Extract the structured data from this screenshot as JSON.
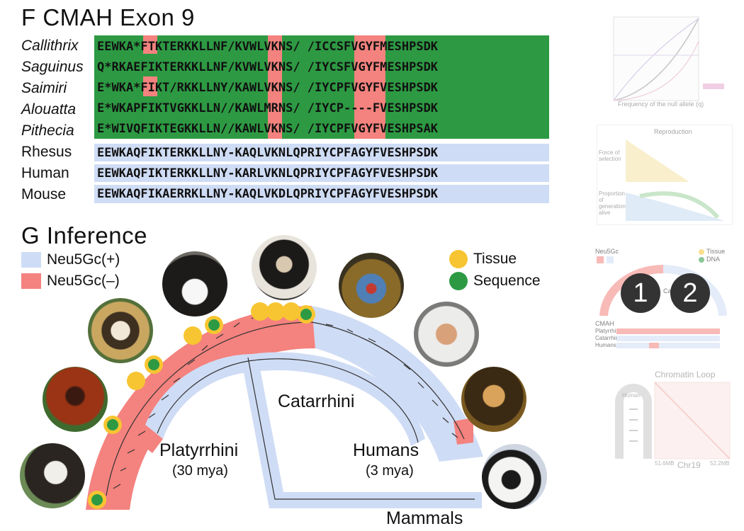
{
  "panelF": {
    "title": "F CMAH Exon 9",
    "species": [
      {
        "name": "Callithrix",
        "italic": true
      },
      {
        "name": "Saguinus",
        "italic": true
      },
      {
        "name": "Saimiri",
        "italic": true
      },
      {
        "name": "Alouatta",
        "italic": true
      },
      {
        "name": "Pithecia",
        "italic": true
      },
      {
        "name": "Rhesus",
        "italic": false
      },
      {
        "name": "Human",
        "italic": false
      },
      {
        "name": "Mouse",
        "italic": false
      }
    ],
    "sequences": [
      "EEWKA*FTKTERKKLLNF/KVWLVKNS/ /ICCSFVGYFMESHPSDK",
      "Q*RKAEFIKTERKKLLNF/KVWLVKNS/ /IYCSFVGYFMESHPSDK",
      "E*WKA*FIKT/RKKLLNY/KAWLVKNS/ /IYCPFVGYFVESHPSDK",
      "E*WKAPFIKTVGKKLLN//KAWLMRNS/ /IYCP----FVESHPSDK",
      "E*WIVQFIKTEGKKLLN//KAWLVKNS/ /IYCPFVGYFVESHPSAK",
      "EEWKAQFIKTERKKLLNY-KAQLVKNLQPRIYCPFAGYFVESHPSDK",
      "EEWKAQFIKTERKKLLNY-KARLVKNLQPRIYCPFAGYFVESHPSDK",
      "EEWKAQFIKAERRKLLNY-KAQLVKDLQPRIYCPFAGYFVESHPSDK"
    ],
    "colors": {
      "positive": "#cfdcf5",
      "negative": "#f4827e",
      "green": "#2d9a43"
    }
  },
  "panelG": {
    "title": "G Inference",
    "legend": {
      "positive": "Neu5Gc(+)",
      "negative": "Neu5Gc(–)",
      "tissue": "Tissue",
      "sequence": "Sequence"
    },
    "clades": {
      "catarrhini": "Catarrhini",
      "platyrrhini": "Platyrrhini",
      "platyrrhini_age": "(30 mya)",
      "humans": "Humans",
      "humans_age": "(3 mya)",
      "mammals": "Mammals"
    },
    "colors": {
      "tissue": "#f7c531",
      "sequence": "#2d9a43"
    }
  },
  "thumbnails": {
    "plot_axis_x": "Frequency of the null allele (q)",
    "reproduction": "Reproduction",
    "force": "Force of selection",
    "proportion": "Proportion of generation alive",
    "neu5gc": "Neu5Gc",
    "tissue": "Tissue",
    "dna": "DNA",
    "one": "1",
    "two": "2",
    "cmah": "CMAH",
    "platyrrhini": "Platyrrhini",
    "catarrhini": "Catarrhini",
    "humans": "Humans",
    "chromatin": "Chromatin Loop",
    "chr": "Chr19",
    "human": "Human",
    "mb_left": "51.6MB",
    "mb_right": "52.2MB"
  }
}
